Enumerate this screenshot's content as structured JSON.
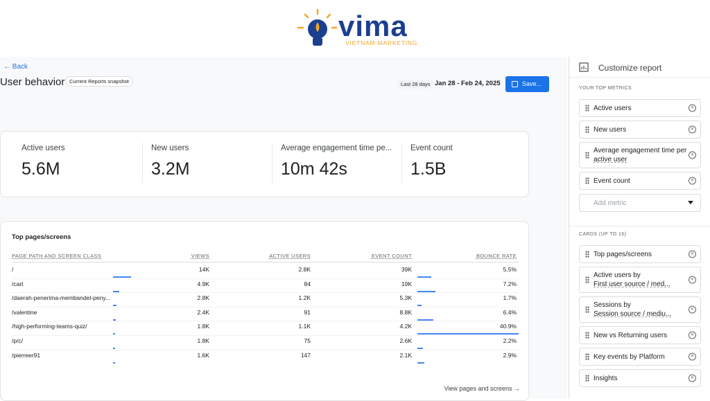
{
  "logo": {
    "name": "vima",
    "tagline": "VIETNAM MARKETING"
  },
  "header": {
    "back": "Back",
    "title": "User behavior",
    "badge": "Current Reports snapshot",
    "date_range_label": "Last 28 days",
    "date_range": "Jan 28 - Feb 24, 2025",
    "save": "Save..."
  },
  "metrics": [
    {
      "label": "Active users",
      "value": "5.6M"
    },
    {
      "label": "New users",
      "value": "3.2M"
    },
    {
      "label": "Average engagement time pe...",
      "value": "10m 42s"
    },
    {
      "label": "Event count",
      "value": "1.5B"
    }
  ],
  "table": {
    "title": "Top pages/screens",
    "columns": [
      "PAGE PATH AND SCREEN CLASS",
      "VIEWS",
      "ACTIVE USERS",
      "EVENT COUNT",
      "BOUNCE RATE"
    ],
    "rows": [
      [
        "/",
        {
          "value": 14000,
          "label": "14K"
        },
        "2.8K",
        "39K",
        {
          "value": 5.5,
          "label": "5.5%"
        }
      ],
      [
        "/cart",
        {
          "value": 4900,
          "label": "4.9K"
        },
        "84",
        "19K",
        {
          "value": 7.2,
          "label": "7.2%"
        }
      ],
      [
        "/daerah-penerima-membandel-peny...",
        {
          "value": 2800,
          "label": "2.8K"
        },
        "1.2K",
        "5.3K",
        {
          "value": 1.7,
          "label": "1.7%"
        }
      ],
      [
        "/valentine",
        {
          "value": 2400,
          "label": "2.4K"
        },
        "91",
        "8.8K",
        {
          "value": 6.4,
          "label": "6.4%"
        }
      ],
      [
        "/high-performing-teams-quiz/",
        {
          "value": 1800,
          "label": "1.8K"
        },
        "1.1K",
        "4.2K",
        {
          "value": 40.9,
          "label": "40.9%"
        }
      ],
      [
        "/p/c/",
        {
          "value": 1800,
          "label": "1.8K"
        },
        "75",
        "2.6K",
        {
          "value": 2.2,
          "label": "2.2%"
        }
      ],
      [
        "/pierreer91",
        {
          "value": 1600,
          "label": "1.6K"
        },
        "147",
        "2.1K",
        {
          "value": 2.9,
          "label": "2.9%"
        }
      ]
    ],
    "footer_link": "View pages and screens"
  },
  "sidebar": {
    "title": "Customize report",
    "top_metrics_heading": "YOUR TOP METRICS",
    "top_metrics": [
      [
        "Active users"
      ],
      [
        "New users"
      ],
      [
        "Average engagement time per",
        "active user"
      ],
      [
        "Event count"
      ]
    ],
    "add_metric": "Add metric",
    "cards_heading": "CARDS (UP TO 16)",
    "cards": [
      [
        "Top pages/screens"
      ],
      [
        "Active users by",
        "First user source / med..."
      ],
      [
        "Sessions by",
        "Session source / mediu..."
      ],
      [
        "New vs Returning users"
      ],
      [
        "Key events by Platform"
      ],
      [
        "Insights"
      ]
    ]
  }
}
